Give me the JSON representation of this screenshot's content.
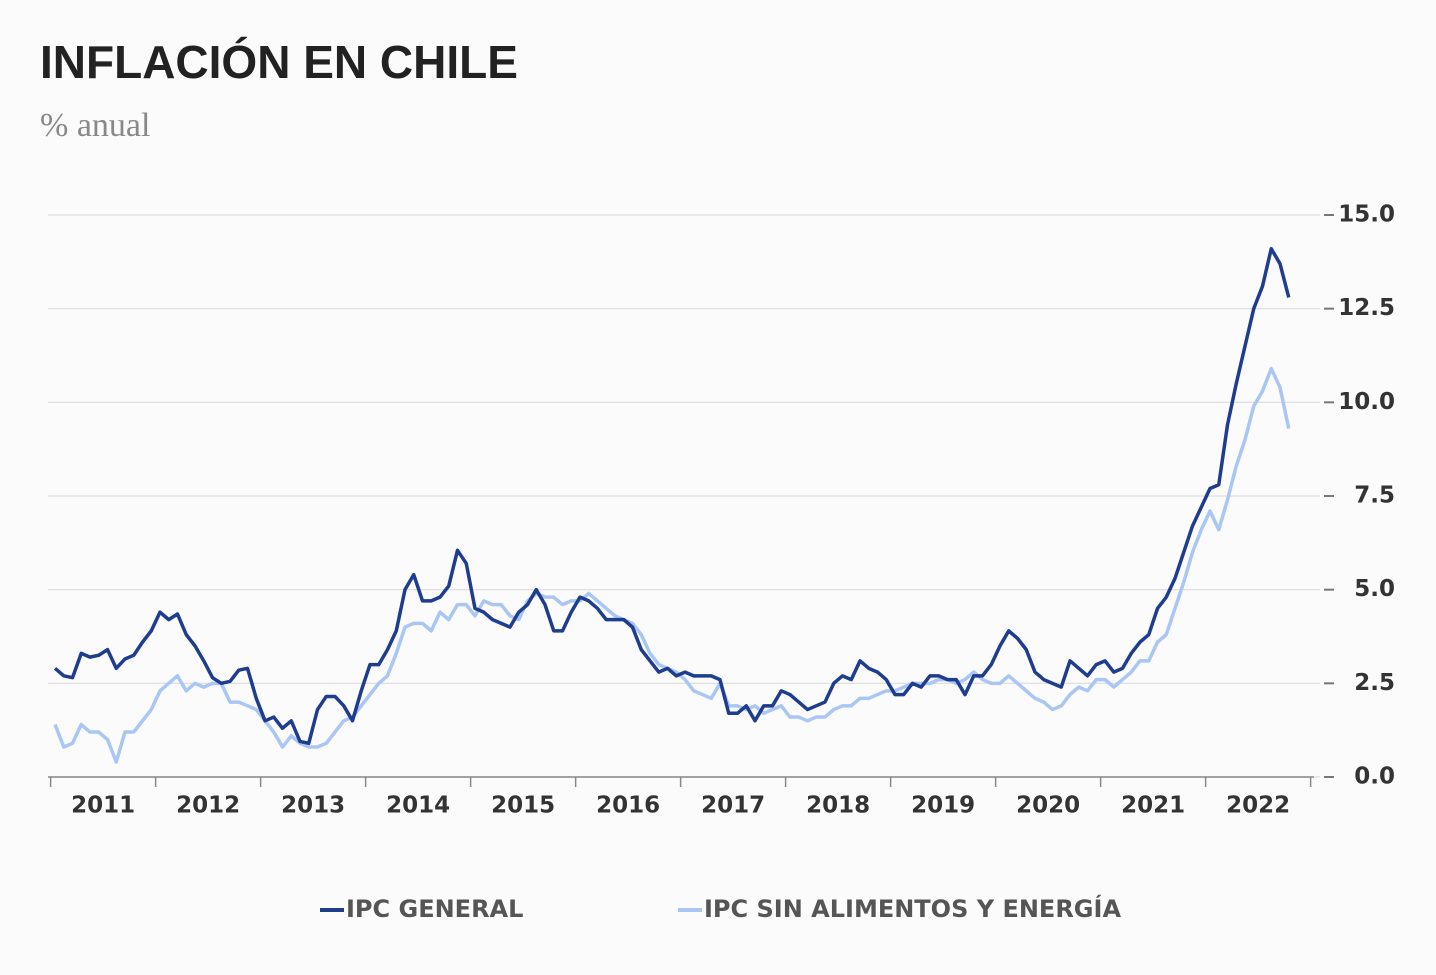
{
  "chart_data": {
    "type": "line",
    "title": "INFLACIÓN EN CHILE",
    "subtitle": "% anual",
    "categories": [
      "2011",
      null,
      null,
      null,
      null,
      null,
      null,
      null,
      null,
      null,
      null,
      null,
      "2012",
      null,
      null,
      null,
      null,
      null,
      null,
      null,
      null,
      null,
      null,
      null,
      "2013",
      null,
      null,
      null,
      null,
      null,
      null,
      null,
      null,
      null,
      null,
      null,
      "2014",
      null,
      null,
      null,
      null,
      null,
      null,
      null,
      null,
      null,
      null,
      null,
      "2015",
      null,
      null,
      null,
      null,
      null,
      null,
      null,
      null,
      null,
      null,
      null,
      "2016",
      null,
      null,
      null,
      null,
      null,
      null,
      null,
      null,
      null,
      null,
      null,
      "2017",
      null,
      null,
      null,
      null,
      null,
      null,
      null,
      null,
      null,
      null,
      null,
      "2018",
      null,
      null,
      null,
      null,
      null,
      null,
      null,
      null,
      null,
      null,
      null,
      "2019",
      null,
      null,
      null,
      null,
      null,
      null,
      null,
      null,
      null,
      null,
      null,
      "2020",
      null,
      null,
      null,
      null,
      null,
      null,
      null,
      null,
      null,
      null,
      null,
      "2021",
      null,
      null,
      null,
      null,
      null,
      null,
      null,
      null,
      null,
      null,
      null,
      "2022",
      null,
      null,
      null,
      null,
      null,
      null,
      null,
      null,
      null
    ],
    "series": [
      {
        "name": "IPC GENERAL",
        "color": "#1f3d8f",
        "values": [
          2.9,
          2.7,
          2.65,
          3.3,
          3.2,
          3.25,
          3.4,
          2.9,
          3.15,
          3.25,
          3.6,
          3.9,
          4.4,
          4.2,
          4.35,
          3.8,
          3.5,
          3.1,
          2.65,
          2.5,
          2.55,
          2.85,
          2.9,
          2.1,
          1.5,
          1.6,
          1.3,
          1.5,
          0.95,
          0.9,
          1.8,
          2.15,
          2.15,
          1.9,
          1.5,
          2.3,
          3.0,
          3.0,
          3.4,
          3.9,
          5.0,
          5.4,
          4.7,
          4.7,
          4.8,
          5.1,
          6.05,
          5.7,
          4.5,
          4.4,
          4.2,
          4.1,
          4.0,
          4.4,
          4.6,
          5.0,
          4.6,
          3.9,
          3.9,
          4.4,
          4.8,
          4.7,
          4.5,
          4.2,
          4.2,
          4.2,
          4.0,
          3.4,
          3.1,
          2.8,
          2.9,
          2.7,
          2.8,
          2.7,
          2.7,
          2.7,
          2.6,
          1.7,
          1.7,
          1.9,
          1.5,
          1.9,
          1.9,
          2.3,
          2.2,
          2.0,
          1.8,
          1.9,
          2.0,
          2.5,
          2.7,
          2.6,
          3.1,
          2.9,
          2.8,
          2.6,
          2.2,
          2.2,
          2.5,
          2.4,
          2.7,
          2.7,
          2.6,
          2.6,
          2.2,
          2.7,
          2.7,
          3.0,
          3.5,
          3.9,
          3.7,
          3.4,
          2.8,
          2.6,
          2.5,
          2.4,
          3.1,
          2.9,
          2.7,
          3.0,
          3.1,
          2.8,
          2.9,
          3.3,
          3.6,
          3.8,
          4.5,
          4.8,
          5.3,
          6.0,
          6.7,
          7.2,
          7.7,
          7.8,
          9.4,
          10.5,
          11.5,
          12.5,
          13.1,
          14.1,
          13.7,
          12.8
        ]
      },
      {
        "name": "IPC SIN ALIMENTOS Y ENERGÍA",
        "color": "#a9c6f5",
        "values": [
          1.4,
          0.8,
          0.9,
          1.4,
          1.2,
          1.2,
          1.0,
          0.4,
          1.2,
          1.2,
          1.5,
          1.8,
          2.3,
          2.5,
          2.7,
          2.3,
          2.5,
          2.4,
          2.5,
          2.5,
          2.0,
          2.0,
          1.9,
          1.8,
          1.5,
          1.2,
          0.8,
          1.1,
          0.9,
          0.8,
          0.8,
          0.9,
          1.2,
          1.5,
          1.6,
          1.9,
          2.2,
          2.5,
          2.7,
          3.3,
          4.0,
          4.1,
          4.1,
          3.9,
          4.4,
          4.2,
          4.6,
          4.6,
          4.3,
          4.7,
          4.6,
          4.6,
          4.3,
          4.2,
          4.7,
          4.9,
          4.8,
          4.8,
          4.6,
          4.7,
          4.7,
          4.9,
          4.7,
          4.5,
          4.3,
          4.2,
          4.1,
          3.8,
          3.3,
          3.0,
          2.9,
          2.8,
          2.6,
          2.3,
          2.2,
          2.1,
          2.5,
          1.9,
          1.9,
          1.8,
          1.9,
          1.7,
          1.8,
          1.9,
          1.6,
          1.6,
          1.5,
          1.6,
          1.6,
          1.8,
          1.9,
          1.9,
          2.1,
          2.1,
          2.2,
          2.3,
          2.3,
          2.4,
          2.5,
          2.5,
          2.5,
          2.6,
          2.6,
          2.5,
          2.6,
          2.8,
          2.6,
          2.5,
          2.5,
          2.7,
          2.5,
          2.3,
          2.1,
          2.0,
          1.8,
          1.9,
          2.2,
          2.4,
          2.3,
          2.6,
          2.6,
          2.4,
          2.6,
          2.8,
          3.1,
          3.1,
          3.6,
          3.8,
          4.5,
          5.2,
          6.0,
          6.6,
          7.1,
          6.6,
          7.4,
          8.3,
          9.0,
          9.9,
          10.3,
          10.9,
          10.4,
          9.3
        ]
      }
    ],
    "ylim": [
      0,
      15
    ],
    "yticks": [
      {
        "value": 0,
        "label": "0.0"
      },
      {
        "value": 2.5,
        "label": "2.5"
      },
      {
        "value": 5,
        "label": "5.0"
      },
      {
        "value": 7.5,
        "label": "7.5"
      },
      {
        "value": 10,
        "label": "10.0"
      },
      {
        "value": 12.5,
        "label": "12.5"
      },
      {
        "value": 15,
        "label": "15.0"
      }
    ],
    "grid": true
  }
}
